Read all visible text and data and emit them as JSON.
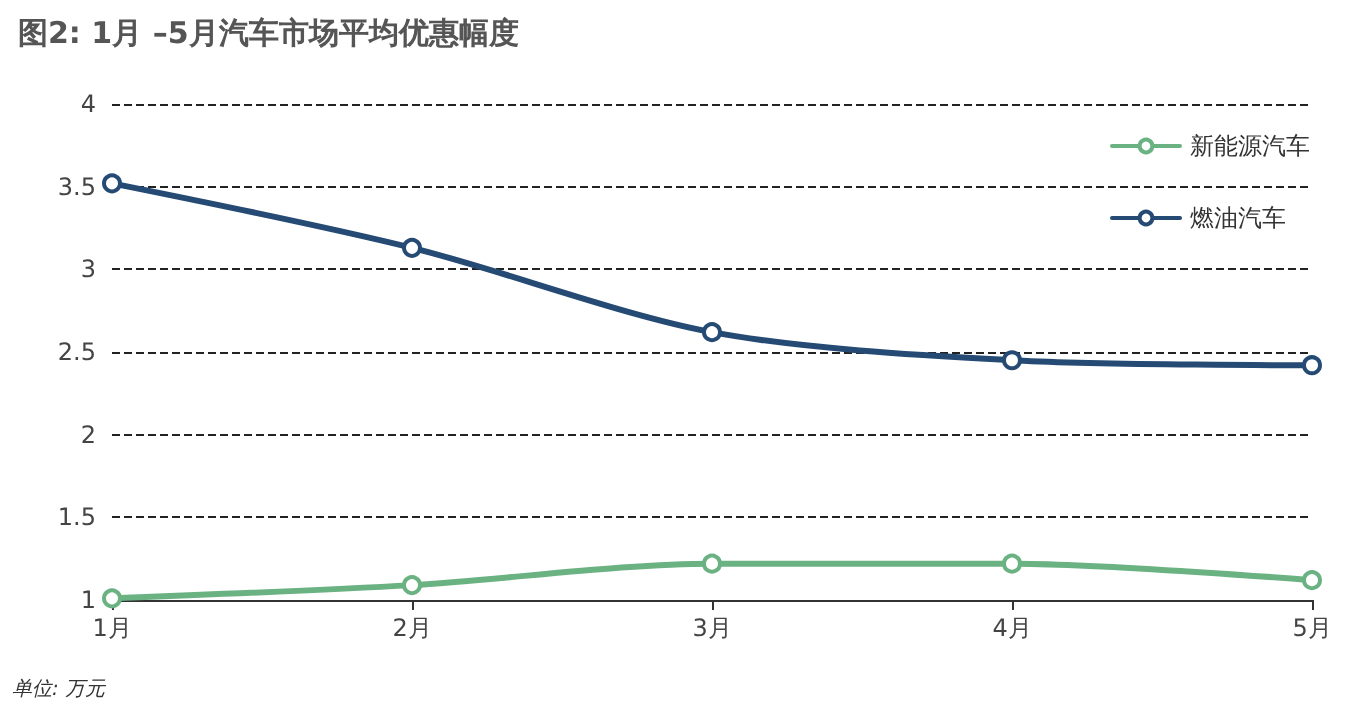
{
  "chart_data": {
    "type": "line",
    "title": "图2: 1月 –5月汽车市场平均优惠幅度",
    "annotations": [
      "单位: 万元"
    ],
    "categories": [
      "1月",
      "2月",
      "3月",
      "4月",
      "5月"
    ],
    "series": [
      {
        "name": "新能源汽车",
        "color": "#6bb283",
        "values": [
          1.01,
          1.09,
          1.22,
          1.22,
          1.12
        ]
      },
      {
        "name": "燃油汽车",
        "color": "#254a74",
        "values": [
          3.52,
          3.13,
          2.62,
          2.45,
          2.42
        ]
      }
    ],
    "ylim": [
      1,
      4
    ],
    "yticks": [
      1,
      1.5,
      2,
      2.5,
      3,
      3.5,
      4
    ],
    "grid": "y",
    "legend": "top right",
    "marker": "circle",
    "line_style": "solid"
  }
}
